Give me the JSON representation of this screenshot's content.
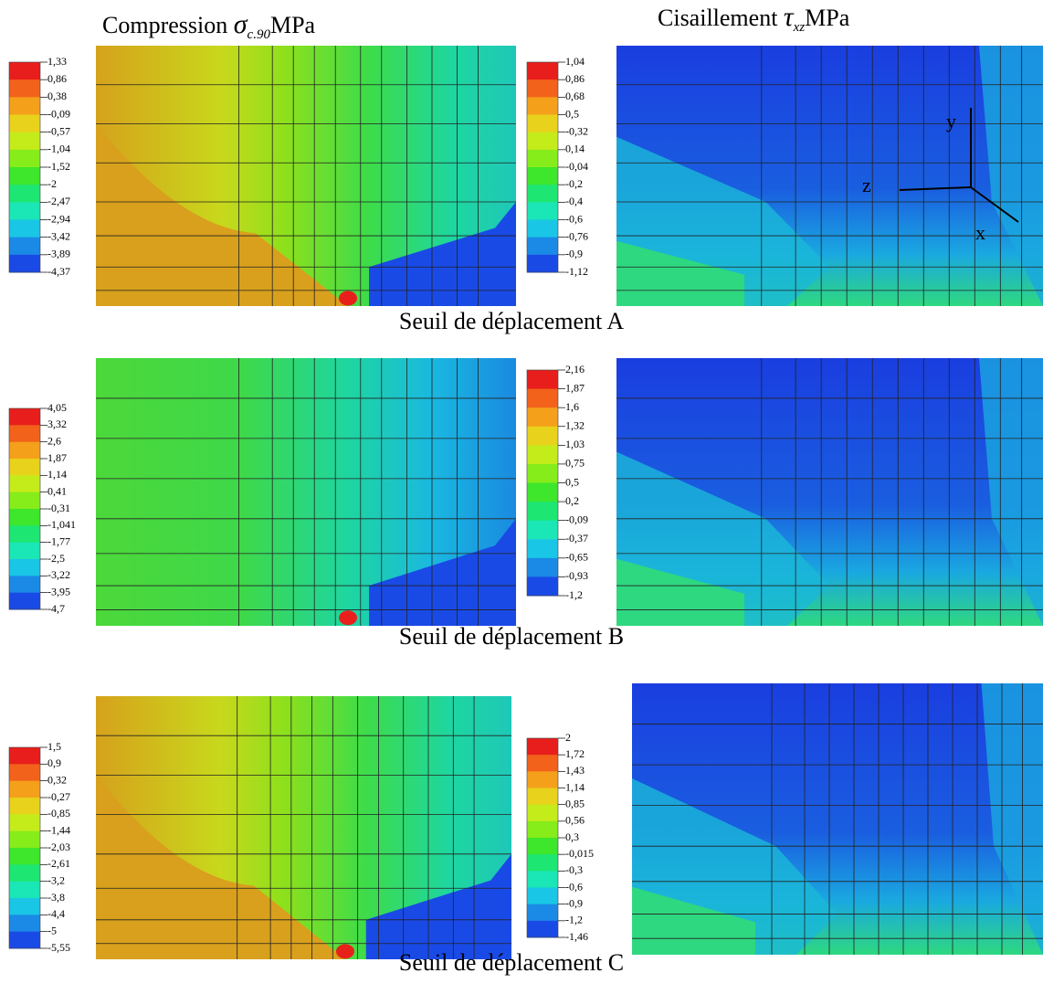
{
  "headers": {
    "left": {
      "prefix": "Compression",
      "symbol": "σ",
      "subscript": "c.90",
      "unit": "MPa"
    },
    "right": {
      "prefix": "Cisaillement",
      "symbol": "τ",
      "subscript": "xz",
      "unit": "MPa"
    }
  },
  "axes": {
    "y": "y",
    "z": "z",
    "x": "x"
  },
  "panels": [
    {
      "caption": "Seuil de déplacement A",
      "left_legend": [
        "1,33",
        "0,86",
        "0,38",
        "-0,09",
        "-0,57",
        "-1,04",
        "-1,52",
        "-2",
        "-2,47",
        "-2,94",
        "-3,42",
        "-3,89",
        "-4,37"
      ],
      "right_legend": [
        "1,04",
        "0,86",
        "0,68",
        "0,5",
        "-0,32",
        "0,14",
        "-0,04",
        "-0,2",
        "-0,4",
        "-0,6",
        "-0,76",
        "-0,9",
        "-1,12"
      ]
    },
    {
      "caption": "Seuil de déplacement B",
      "left_legend": [
        "4,05",
        "3,32",
        "2,6",
        "1,87",
        "1,14",
        "0,41",
        "-0,31",
        "-1,041",
        "-1,77",
        "-2,5",
        "-3,22",
        "-3,95",
        "-4,7"
      ],
      "right_legend": [
        "2,16",
        "1,87",
        "1,6",
        "1,32",
        "1,03",
        "0,75",
        "0,5",
        "0,2",
        "-0,09",
        "-0,37",
        "-0,65",
        "-0,93",
        "-1,2"
      ]
    },
    {
      "caption": "Seuil de déplacement C",
      "left_legend": [
        "1,5",
        "0,9",
        "0,32",
        "-0,27",
        "-0,85",
        "-1,44",
        "-2,03",
        "-2,61",
        "-3,2",
        "-3,8",
        "-4,4",
        "-5",
        "-5,55"
      ],
      "right_legend": [
        "2",
        "1,72",
        "1,43",
        "1,14",
        "0,85",
        "0,56",
        "0,3",
        "-0,015",
        "-0,3",
        "-0,6",
        "-0,9",
        "-1,2",
        "-1,46"
      ]
    }
  ]
}
